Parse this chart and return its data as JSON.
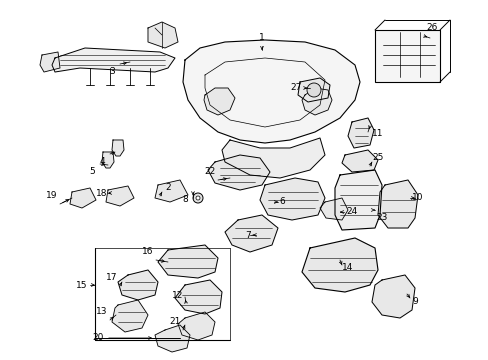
{
  "background_color": "#ffffff",
  "border_color": "#000000",
  "fig_width": 4.89,
  "fig_height": 3.6,
  "dpi": 100,
  "line_color": "#000000",
  "text_color": "#000000",
  "font_size": 6.5,
  "img_extent": [
    0,
    489,
    0,
    360
  ]
}
